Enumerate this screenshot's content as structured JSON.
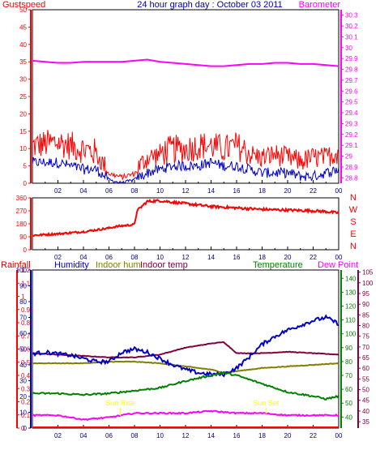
{
  "title": "24 hour graph day : October 03 2011",
  "x_ticks": [
    "02",
    "04",
    "06",
    "08",
    "10",
    "12",
    "14",
    "16",
    "18",
    "20",
    "22",
    "00"
  ],
  "colors": {
    "gust": "#ff0000",
    "wind": "#0000cc",
    "baro": "#ff00ff",
    "rain": "#ff0000",
    "humidity": "#0000cc",
    "indoor_hum": "#808000",
    "indoor_temp": "#800040",
    "temperature": "#008000",
    "dew_point": "#ff00ff",
    "sun": "#ffff00",
    "dir": "#ff0000"
  },
  "chart_data": [
    {
      "type": "line",
      "name": "wind",
      "labels": {
        "left": "Gustspeed",
        "right": "Barometer"
      },
      "y_left": {
        "ticks": [
          0,
          5,
          10,
          15,
          20,
          25,
          30,
          35,
          40,
          45,
          50
        ],
        "range": [
          0,
          50
        ]
      },
      "y_right": {
        "ticks": [
          "28.8",
          "28.9",
          "29",
          "29.1",
          "29.2",
          "29.3",
          "29.4",
          "29.5",
          "29.6",
          "29.7",
          "29.8",
          "29.9",
          "30",
          "30.1",
          "30.2",
          "30.3"
        ],
        "range": [
          28.75,
          30.35
        ]
      },
      "gust_profile": [
        [
          0,
          9
        ],
        [
          2,
          10
        ],
        [
          4,
          8
        ],
        [
          5,
          7
        ],
        [
          6,
          2
        ],
        [
          7,
          1
        ],
        [
          8,
          2
        ],
        [
          9,
          6
        ],
        [
          10,
          7
        ],
        [
          11,
          8
        ],
        [
          12,
          8
        ],
        [
          13,
          9
        ],
        [
          14,
          9
        ],
        [
          15,
          8
        ],
        [
          16,
          9
        ],
        [
          17,
          7
        ],
        [
          18,
          6
        ],
        [
          19,
          7
        ],
        [
          20,
          6
        ],
        [
          21,
          5
        ],
        [
          22,
          6
        ],
        [
          23,
          6
        ],
        [
          24,
          8
        ]
      ],
      "wind_profile": [
        [
          0,
          6
        ],
        [
          2,
          6
        ],
        [
          4,
          4
        ],
        [
          5,
          4
        ],
        [
          6,
          1
        ],
        [
          7,
          0
        ],
        [
          8,
          1
        ],
        [
          9,
          3
        ],
        [
          10,
          4
        ],
        [
          11,
          5
        ],
        [
          12,
          5
        ],
        [
          13,
          5
        ],
        [
          14,
          6
        ],
        [
          15,
          5
        ],
        [
          16,
          5
        ],
        [
          17,
          4
        ],
        [
          18,
          3
        ],
        [
          19,
          3
        ],
        [
          20,
          3
        ],
        [
          21,
          2
        ],
        [
          22,
          2
        ],
        [
          23,
          3
        ],
        [
          24,
          4
        ]
      ],
      "barometer": [
        [
          0,
          29.88
        ],
        [
          1,
          29.87
        ],
        [
          2,
          29.86
        ],
        [
          3,
          29.86
        ],
        [
          4,
          29.87
        ],
        [
          5,
          29.87
        ],
        [
          6,
          29.87
        ],
        [
          7,
          29.87
        ],
        [
          8,
          29.88
        ],
        [
          9,
          29.89
        ],
        [
          10,
          29.87
        ],
        [
          11,
          29.86
        ],
        [
          12,
          29.85
        ],
        [
          13,
          29.84
        ],
        [
          14,
          29.83
        ],
        [
          15,
          29.83
        ],
        [
          16,
          29.84
        ],
        [
          17,
          29.85
        ],
        [
          18,
          29.85
        ],
        [
          19,
          29.86
        ],
        [
          20,
          29.86
        ],
        [
          21,
          29.85
        ],
        [
          22,
          29.85
        ],
        [
          23,
          29.84
        ],
        [
          24,
          29.83
        ]
      ]
    },
    {
      "type": "scatter",
      "name": "wind_direction",
      "y_left": {
        "ticks": [
          0,
          90,
          180,
          270,
          360
        ],
        "range": [
          0,
          360
        ]
      },
      "y_right": {
        "ticks": [
          "N",
          "W",
          "S",
          "E",
          "N"
        ]
      },
      "direction": [
        [
          0,
          100
        ],
        [
          2,
          110
        ],
        [
          4,
          125
        ],
        [
          6,
          150
        ],
        [
          6.5,
          160
        ],
        [
          8,
          175
        ],
        [
          8.2,
          270
        ],
        [
          9,
          335
        ],
        [
          10,
          340
        ],
        [
          12,
          320
        ],
        [
          14,
          300
        ],
        [
          16,
          290
        ],
        [
          18,
          280
        ],
        [
          20,
          275
        ],
        [
          22,
          270
        ],
        [
          23,
          265
        ],
        [
          24,
          255
        ]
      ]
    },
    {
      "type": "line",
      "name": "climate",
      "labels": {
        "rainfall": "Rainfall",
        "humidity": "Humidity",
        "indoor_hum": "Indoor hum",
        "indoor_temp": "Indoor temp",
        "temperature": "Temperature",
        "dew_point": "Dew Point"
      },
      "y_rain": {
        "ticks": [
          "0",
          "0.1",
          "0.2",
          "0.3",
          "0.4",
          "0.5",
          "0.6",
          "0.7",
          "0.8",
          "0.9",
          "1",
          "1.1",
          "1.2"
        ],
        "range": [
          0,
          1.2
        ]
      },
      "y_hum": {
        "ticks": [
          0,
          10,
          20,
          30,
          40,
          50,
          60,
          70,
          80,
          90,
          100
        ],
        "range": [
          0,
          100
        ]
      },
      "y_temp": {
        "ticks": [
          40,
          50,
          60,
          70,
          80,
          90,
          100,
          110,
          120,
          130,
          140
        ],
        "range": [
          32,
          146
        ]
      },
      "y_dew": {
        "ticks": [
          35,
          40,
          45,
          50,
          55,
          60,
          65,
          70,
          75,
          80,
          85,
          90,
          95,
          100,
          105
        ],
        "range": [
          32,
          106
        ]
      },
      "annotations": [
        {
          "text": "Sun Rise",
          "x": 6.9
        },
        {
          "text": "Sun Set",
          "x": 18.3
        }
      ],
      "humidity": [
        [
          0,
          47
        ],
        [
          1,
          48
        ],
        [
          2,
          47
        ],
        [
          3,
          46
        ],
        [
          4,
          44
        ],
        [
          5,
          42
        ],
        [
          6,
          42
        ],
        [
          7,
          48
        ],
        [
          8,
          50
        ],
        [
          9,
          48
        ],
        [
          10,
          44
        ],
        [
          11,
          40
        ],
        [
          12,
          37
        ],
        [
          13,
          35
        ],
        [
          14,
          34
        ],
        [
          15,
          34
        ],
        [
          16,
          38
        ],
        [
          17,
          45
        ],
        [
          18,
          53
        ],
        [
          19,
          58
        ],
        [
          20,
          62
        ],
        [
          21,
          65
        ],
        [
          22,
          68
        ],
        [
          23,
          70
        ],
        [
          24,
          66
        ]
      ],
      "indoor_hum": [
        [
          0,
          41
        ],
        [
          2,
          41
        ],
        [
          4,
          41
        ],
        [
          6,
          42
        ],
        [
          8,
          42
        ],
        [
          10,
          41
        ],
        [
          12,
          39
        ],
        [
          14,
          37
        ],
        [
          15,
          35
        ],
        [
          16,
          36
        ],
        [
          18,
          38
        ],
        [
          20,
          39
        ],
        [
          22,
          40
        ],
        [
          24,
          41
        ]
      ],
      "indoor_temp": [
        [
          0,
          86
        ],
        [
          2,
          85
        ],
        [
          4,
          84
        ],
        [
          6,
          83
        ],
        [
          8,
          83
        ],
        [
          10,
          85
        ],
        [
          12,
          90
        ],
        [
          14,
          93
        ],
        [
          15,
          94
        ],
        [
          16,
          86
        ],
        [
          18,
          86
        ],
        [
          20,
          87
        ],
        [
          22,
          86
        ],
        [
          24,
          85
        ]
      ],
      "temperature": [
        [
          0,
          57
        ],
        [
          2,
          57
        ],
        [
          4,
          56
        ],
        [
          6,
          57
        ],
        [
          8,
          59
        ],
        [
          10,
          61
        ],
        [
          12,
          66
        ],
        [
          14,
          70
        ],
        [
          15,
          72
        ],
        [
          16,
          70
        ],
        [
          18,
          64
        ],
        [
          20,
          58
        ],
        [
          22,
          55
        ],
        [
          23,
          53
        ],
        [
          24,
          55
        ]
      ],
      "dew_point": [
        [
          0,
          38
        ],
        [
          2,
          38
        ],
        [
          4,
          36
        ],
        [
          6,
          37
        ],
        [
          7,
          38
        ],
        [
          8,
          39
        ],
        [
          10,
          39
        ],
        [
          12,
          39
        ],
        [
          14,
          40
        ],
        [
          16,
          39
        ],
        [
          18,
          39
        ],
        [
          20,
          38
        ],
        [
          22,
          38
        ],
        [
          24,
          38
        ]
      ],
      "rainfall": [
        [
          0,
          0
        ],
        [
          24,
          0
        ]
      ]
    }
  ]
}
